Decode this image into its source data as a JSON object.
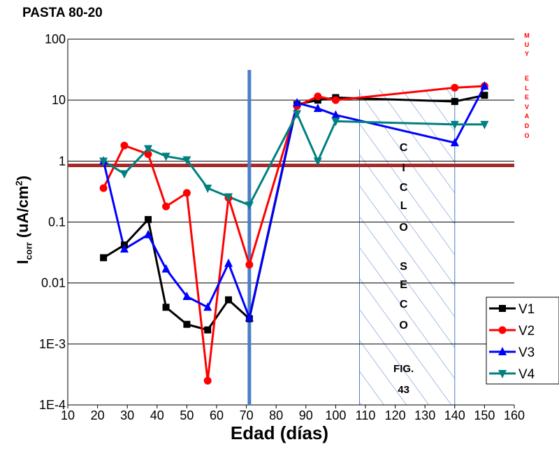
{
  "colors": {
    "V1": "#000000",
    "V2": "#ff0000",
    "V3": "#0000ff",
    "V4": "#008080",
    "vline": "#4a7ec8",
    "hline": "#a52a2a",
    "hatch": "#4a7ec8",
    "grid": "#000000"
  },
  "chart_data": {
    "type": "line",
    "title": "PASTA 80-20",
    "xlabel": "Edad (días)",
    "ylabel": {
      "main": "I",
      "sub": "corr",
      "unit": " (uA/cm",
      "sup": "2",
      "close": ")"
    },
    "y_scale": "log",
    "xlim": [
      10,
      160
    ],
    "ylim": [
      0.0001,
      100
    ],
    "x_ticks": [
      10,
      20,
      30,
      40,
      50,
      60,
      70,
      80,
      90,
      100,
      110,
      120,
      130,
      140,
      150,
      160
    ],
    "y_ticks": [
      {
        "value": 0.0001,
        "label": "1E-4"
      },
      {
        "value": 0.001,
        "label": "1E-3"
      },
      {
        "value": 0.01,
        "label": "0.01"
      },
      {
        "value": 0.1,
        "label": "0.1"
      },
      {
        "value": 1,
        "label": "1"
      },
      {
        "value": 10,
        "label": "10"
      },
      {
        "value": 100,
        "label": "100"
      }
    ],
    "grid": "horizontal",
    "legend": "bottom-right",
    "series": [
      {
        "name": "V1",
        "marker": "square",
        "color": "#000000",
        "x": [
          22,
          29,
          37,
          43,
          50,
          57,
          64,
          71,
          87,
          94,
          100,
          140,
          150
        ],
        "y": [
          0.026,
          0.042,
          0.11,
          0.004,
          0.0021,
          0.0017,
          0.0053,
          0.0026,
          8.5,
          10,
          11,
          9.5,
          12
        ]
      },
      {
        "name": "V2",
        "marker": "circle",
        "color": "#ff0000",
        "x": [
          22,
          29,
          37,
          43,
          50,
          57,
          64,
          71,
          87,
          94,
          100,
          140,
          150
        ],
        "y": [
          0.36,
          1.8,
          1.3,
          0.18,
          0.3,
          0.00025,
          0.25,
          0.02,
          8.0,
          11.5,
          10,
          16,
          17
        ]
      },
      {
        "name": "V3",
        "marker": "triangle-up",
        "color": "#0000ff",
        "x": [
          22,
          29,
          37,
          43,
          50,
          57,
          64,
          71,
          87,
          94,
          100,
          140,
          150
        ],
        "y": [
          1.0,
          0.036,
          0.062,
          0.017,
          0.006,
          0.004,
          0.021,
          0.0027,
          9.0,
          7.3,
          5.7,
          2.0,
          17
        ]
      },
      {
        "name": "V4",
        "marker": "triangle-down",
        "color": "#008080",
        "x": [
          22,
          29,
          37,
          43,
          50,
          57,
          64,
          71,
          87,
          94,
          100,
          140,
          150
        ],
        "y": [
          1.0,
          0.62,
          1.6,
          1.2,
          1.05,
          0.36,
          0.26,
          0.19,
          6.0,
          1.0,
          4.5,
          4.0,
          4.0
        ]
      }
    ],
    "vertical_line_x": 71,
    "horizontal_threshold_y": 0.85,
    "shaded_region": {
      "x_start": 108,
      "x_end": 140
    },
    "annotations": {
      "ciclo_seco": [
        "C",
        "I",
        "C",
        "L",
        "O",
        "S",
        "E",
        "C",
        "O"
      ],
      "fig": [
        "FIG.",
        "43"
      ],
      "muy_elevado": [
        "M",
        "U",
        "Y",
        "E",
        "L",
        "E",
        "V",
        "A",
        "D",
        "O"
      ]
    }
  }
}
